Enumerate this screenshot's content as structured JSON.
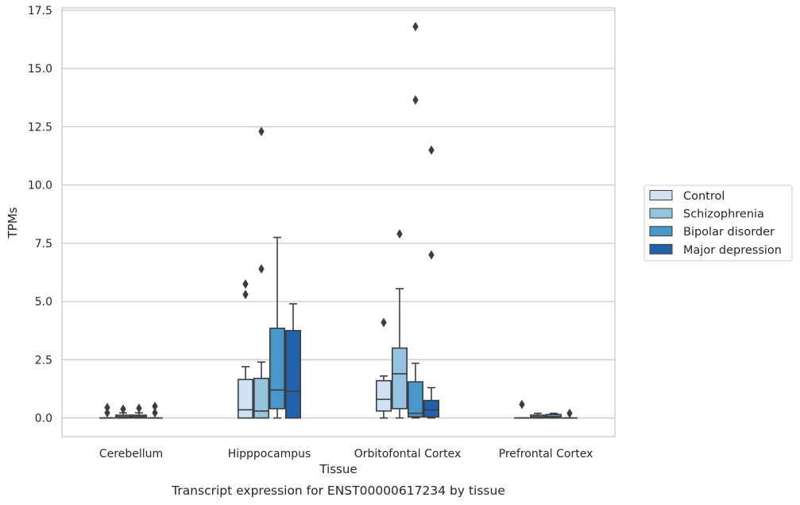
{
  "chart_data": {
    "type": "boxplot",
    "caption": "Transcript expression for ENST00000617234 by tissue",
    "xlabel": "Tissue",
    "ylabel": "TPMs",
    "ylim": [
      -0.8,
      17.6
    ],
    "yticks": [
      0.0,
      2.5,
      5.0,
      7.5,
      10.0,
      12.5,
      15.0,
      17.5
    ],
    "ytick_labels": [
      "0.0",
      "2.5",
      "5.0",
      "7.5",
      "10.0",
      "12.5",
      "15.0",
      "17.5"
    ],
    "grid": true,
    "legend_placement": "right",
    "categories": [
      "Cerebellum",
      "Hipppocampus",
      "Orbitofontal Cortex",
      "Prefrontal Cortex"
    ],
    "series": [
      {
        "name": "Control",
        "color": "#d0e1f2",
        "boxes": [
          {
            "whisker_low": 0.0,
            "q1": 0.0,
            "median": 0.0,
            "q3": 0.0,
            "whisker_high": 0.0,
            "outliers": [
              0.45,
              0.22
            ]
          },
          {
            "whisker_low": 0.0,
            "q1": 0.0,
            "median": 0.35,
            "q3": 1.65,
            "whisker_high": 2.2,
            "outliers": [
              5.75,
              5.3
            ]
          },
          {
            "whisker_low": 0.0,
            "q1": 0.3,
            "median": 0.8,
            "q3": 1.6,
            "whisker_high": 1.8,
            "outliers": [
              4.1
            ]
          },
          {
            "whisker_low": 0.0,
            "q1": 0.0,
            "median": 0.0,
            "q3": 0.0,
            "whisker_high": 0.0,
            "outliers": [
              0.58
            ]
          }
        ]
      },
      {
        "name": "Schizophrenia",
        "color": "#94c4df",
        "boxes": [
          {
            "whisker_low": 0.0,
            "q1": 0.0,
            "median": 0.05,
            "q3": 0.12,
            "whisker_high": 0.22,
            "outliers": [
              0.38
            ]
          },
          {
            "whisker_low": 0.0,
            "q1": 0.0,
            "median": 0.3,
            "q3": 1.7,
            "whisker_high": 2.4,
            "outliers": [
              12.3,
              6.4
            ]
          },
          {
            "whisker_low": 0.0,
            "q1": 0.4,
            "median": 1.9,
            "q3": 3.0,
            "whisker_high": 5.55,
            "outliers": [
              7.9
            ]
          },
          {
            "whisker_low": 0.0,
            "q1": 0.0,
            "median": 0.05,
            "q3": 0.12,
            "whisker_high": 0.2,
            "outliers": []
          }
        ]
      },
      {
        "name": "Bipolar disorder",
        "color": "#4a98c9",
        "boxes": [
          {
            "whisker_low": 0.0,
            "q1": 0.0,
            "median": 0.05,
            "q3": 0.12,
            "whisker_high": 0.22,
            "outliers": [
              0.42
            ]
          },
          {
            "whisker_low": 0.0,
            "q1": 0.4,
            "median": 1.2,
            "q3": 3.85,
            "whisker_high": 7.75,
            "outliers": []
          },
          {
            "whisker_low": 0.0,
            "q1": 0.05,
            "median": 0.2,
            "q3": 1.55,
            "whisker_high": 2.35,
            "outliers": [
              16.8,
              13.65
            ]
          },
          {
            "whisker_low": 0.0,
            "q1": 0.0,
            "median": 0.05,
            "q3": 0.15,
            "whisker_high": 0.2,
            "outliers": []
          }
        ]
      },
      {
        "name": "Major depression",
        "color": "#2163aa",
        "boxes": [
          {
            "whisker_low": 0.0,
            "q1": 0.0,
            "median": 0.0,
            "q3": 0.0,
            "whisker_high": 0.0,
            "outliers": [
              0.5,
              0.22
            ]
          },
          {
            "whisker_low": 0.0,
            "q1": 0.0,
            "median": 1.15,
            "q3": 3.75,
            "whisker_high": 4.9,
            "outliers": []
          },
          {
            "whisker_low": 0.0,
            "q1": 0.05,
            "median": 0.35,
            "q3": 0.75,
            "whisker_high": 1.3,
            "outliers": [
              11.5,
              7.0
            ]
          },
          {
            "whisker_low": 0.0,
            "q1": 0.0,
            "median": 0.0,
            "q3": 0.0,
            "whisker_high": 0.0,
            "outliers": [
              0.2
            ]
          }
        ]
      }
    ]
  }
}
